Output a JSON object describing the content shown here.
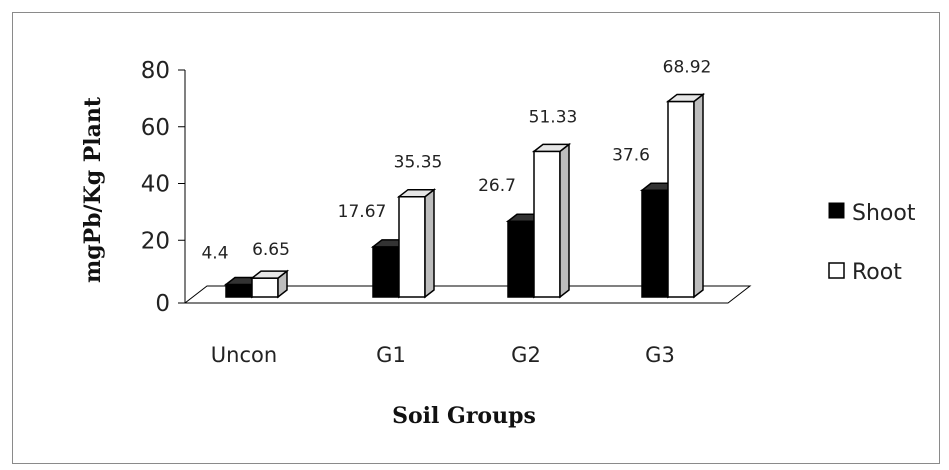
{
  "chart_data": {
    "type": "bar",
    "categories": [
      "Uncon",
      "G1",
      "G2",
      "G3"
    ],
    "series": [
      {
        "name": "Shoot",
        "values": [
          4.4,
          17.67,
          26.7,
          37.6
        ],
        "color": "#000000"
      },
      {
        "name": "Root",
        "values": [
          6.65,
          35.35,
          51.33,
          68.92
        ],
        "color": "#ffffff"
      }
    ],
    "data_labels": {
      "Shoot": [
        "4.4",
        "17.67",
        "26.7",
        "37.6"
      ],
      "Root": [
        "6.65",
        "35.35",
        "51.33",
        "68.92"
      ]
    },
    "y_ticks": [
      "0",
      "20",
      "40",
      "60",
      "80"
    ],
    "ylim": [
      0,
      80
    ],
    "xlabel": "Soil Groups",
    "ylabel": "mgPb/Kg Plant",
    "legend_position": "right",
    "three_d": true
  }
}
